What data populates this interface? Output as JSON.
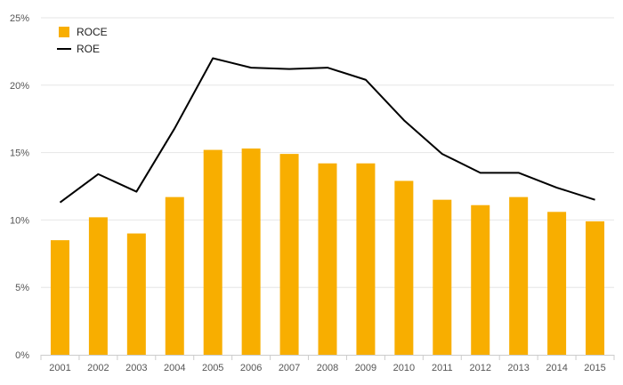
{
  "chart_data": {
    "type": "bar",
    "categories": [
      "2001",
      "2002",
      "2003",
      "2004",
      "2005",
      "2006",
      "2007",
      "2008",
      "2009",
      "2010",
      "2011",
      "2012",
      "2013",
      "2014",
      "2015"
    ],
    "series": [
      {
        "name": "ROCE",
        "type": "bar",
        "color": "#F8AE00",
        "values": [
          8.5,
          10.2,
          9.0,
          11.7,
          15.2,
          15.3,
          14.9,
          14.2,
          14.2,
          12.9,
          11.5,
          11.1,
          11.7,
          10.6,
          9.9
        ]
      },
      {
        "name": "ROE",
        "type": "line",
        "color": "#000000",
        "values": [
          11.3,
          13.4,
          12.1,
          16.8,
          22.0,
          21.3,
          21.2,
          21.3,
          20.4,
          17.4,
          14.9,
          13.5,
          13.5,
          12.4,
          11.5
        ]
      }
    ],
    "yticks": [
      "0%",
      "5%",
      "10%",
      "15%",
      "20%",
      "25%"
    ],
    "ylim": [
      0,
      25
    ],
    "grid": true,
    "legend_position": "top-left"
  }
}
